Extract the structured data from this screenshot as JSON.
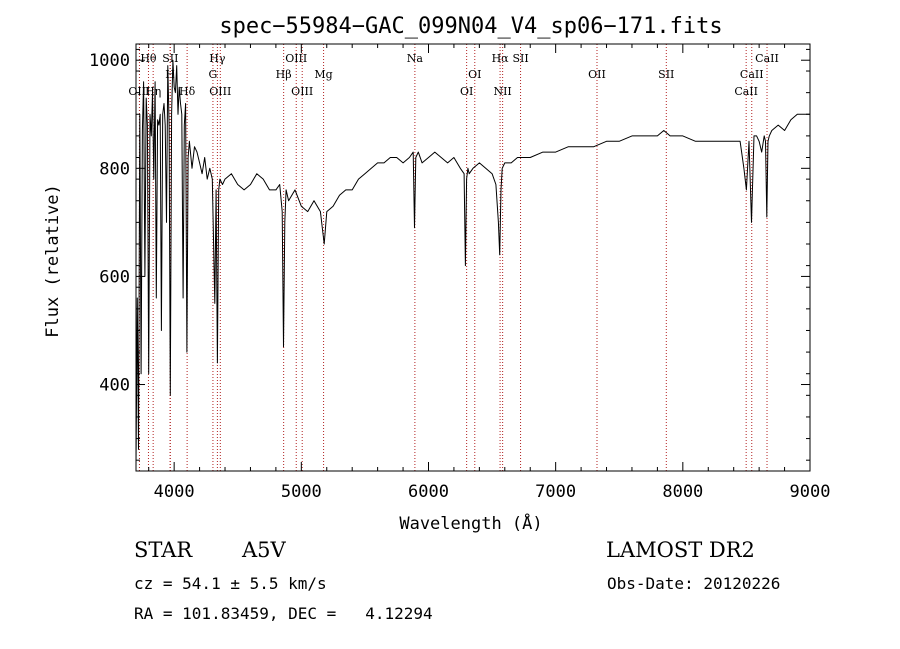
{
  "chart_data": {
    "type": "line",
    "title": "spec−55984−GAC_099N04_V4_sp06−171.fits",
    "xlabel": "Wavelength (Å)",
    "ylabel": "Flux (relative)",
    "xlim": [
      3700,
      9000
    ],
    "ylim": [
      240,
      1030
    ],
    "xticks": [
      4000,
      5000,
      6000,
      7000,
      8000,
      9000
    ],
    "yticks": [
      400,
      600,
      800,
      1000
    ],
    "grid": false,
    "legend": "none",
    "series": [
      {
        "x": [
          3700,
          3710,
          3720,
          3730,
          3740,
          3750,
          3760,
          3770,
          3780,
          3790,
          3800,
          3810,
          3820,
          3830,
          3840,
          3850,
          3860,
          3870,
          3880,
          3890,
          3900,
          3910,
          3920,
          3930,
          3940,
          3950,
          3960,
          3970,
          3980,
          3990,
          4000,
          4010,
          4020,
          4030,
          4040,
          4050,
          4060,
          4070,
          4080,
          4090,
          4100,
          4110,
          4120,
          4140,
          4160,
          4180,
          4200,
          4220,
          4240,
          4260,
          4280,
          4300,
          4320,
          4330,
          4340,
          4350,
          4360,
          4380,
          4400,
          4450,
          4500,
          4550,
          4600,
          4650,
          4700,
          4750,
          4800,
          4830,
          4850,
          4860,
          4870,
          4880,
          4900,
          4950,
          5000,
          5050,
          5100,
          5150,
          5180,
          5200,
          5250,
          5300,
          5350,
          5400,
          5450,
          5500,
          5550,
          5600,
          5650,
          5700,
          5750,
          5800,
          5850,
          5880,
          5890,
          5900,
          5920,
          5950,
          6000,
          6050,
          6100,
          6150,
          6200,
          6250,
          6280,
          6290,
          6300,
          6310,
          6320,
          6350,
          6400,
          6450,
          6500,
          6530,
          6550,
          6560,
          6570,
          6580,
          6600,
          6650,
          6700,
          6800,
          6900,
          7000,
          7100,
          7200,
          7300,
          7400,
          7500,
          7600,
          7700,
          7800,
          7850,
          7900,
          8000,
          8100,
          8200,
          8300,
          8400,
          8450,
          8480,
          8500,
          8520,
          8540,
          8560,
          8580,
          8600,
          8620,
          8640,
          8650,
          8660,
          8670,
          8680,
          8700,
          8750,
          8800,
          8850,
          8900,
          8950,
          9000
        ],
        "values": [
          250,
          560,
          280,
          900,
          420,
          870,
          960,
          600,
          930,
          880,
          420,
          900,
          860,
          940,
          780,
          960,
          560,
          890,
          880,
          900,
          500,
          900,
          920,
          880,
          700,
          990,
          880,
          380,
          900,
          1000,
          950,
          940,
          990,
          900,
          950,
          920,
          900,
          560,
          880,
          920,
          460,
          820,
          850,
          800,
          840,
          830,
          810,
          790,
          820,
          780,
          800,
          780,
          550,
          760,
          440,
          760,
          780,
          770,
          780,
          790,
          770,
          760,
          770,
          790,
          780,
          760,
          760,
          770,
          720,
          470,
          700,
          760,
          740,
          760,
          730,
          720,
          740,
          720,
          660,
          720,
          730,
          750,
          760,
          760,
          780,
          790,
          800,
          810,
          810,
          820,
          820,
          810,
          820,
          830,
          690,
          820,
          830,
          810,
          820,
          830,
          820,
          810,
          820,
          800,
          790,
          620,
          780,
          800,
          790,
          800,
          810,
          800,
          790,
          770,
          700,
          640,
          760,
          800,
          810,
          810,
          820,
          820,
          830,
          830,
          840,
          840,
          840,
          850,
          850,
          860,
          860,
          860,
          870,
          860,
          860,
          850,
          850,
          850,
          850,
          850,
          800,
          760,
          850,
          700,
          860,
          860,
          850,
          830,
          860,
          850,
          710,
          850,
          860,
          870,
          880,
          870,
          890,
          900,
          900,
          900
        ]
      }
    ],
    "lines": [
      {
        "label": "OIII",
        "wl": 3727,
        "row": 3
      },
      {
        "label": "Hθ",
        "wl": 3798,
        "row": 1
      },
      {
        "label": "Hη",
        "wl": 3835,
        "row": 3
      },
      {
        "label": "SII",
        "wl": 3970,
        "row": 1
      },
      {
        "label": "H",
        "wl": 3968,
        "row": 2
      },
      {
        "label": "Hδ",
        "wl": 4102,
        "row": 3
      },
      {
        "label": "Hγ",
        "wl": 4340,
        "row": 1
      },
      {
        "label": "G",
        "wl": 4305,
        "row": 2
      },
      {
        "label": "OIII",
        "wl": 4363,
        "row": 3
      },
      {
        "label": "OIII",
        "wl": 4960,
        "row": 1
      },
      {
        "label": "Hβ",
        "wl": 4861,
        "row": 2
      },
      {
        "label": "OIII",
        "wl": 5007,
        "row": 3
      },
      {
        "label": "Mg",
        "wl": 5175,
        "row": 2
      },
      {
        "label": "Na",
        "wl": 5893,
        "row": 1
      },
      {
        "label": "OI",
        "wl": 6364,
        "row": 2
      },
      {
        "label": "OI",
        "wl": 6300,
        "row": 3
      },
      {
        "label": "Hα",
        "wl": 6563,
        "row": 1
      },
      {
        "label": "SII",
        "wl": 6724,
        "row": 1
      },
      {
        "label": "NII",
        "wl": 6583,
        "row": 3
      },
      {
        "label": "OII",
        "wl": 7325,
        "row": 2
      },
      {
        "label": "SII",
        "wl": 7870,
        "row": 2
      },
      {
        "label": "CaII",
        "wl": 8662,
        "row": 1
      },
      {
        "label": "CaII",
        "wl": 8542,
        "row": 2
      },
      {
        "label": "CaII",
        "wl": 8498,
        "row": 3
      }
    ]
  },
  "info": {
    "object_class": "STAR",
    "subclass": "A5V",
    "survey": "LAMOST DR2",
    "redshift": "cz = 54.1 ± 5.5 km/s",
    "obs_date": "Obs-Date: 20120226",
    "coords": "RA = 101.83459, DEC =   4.12294"
  }
}
